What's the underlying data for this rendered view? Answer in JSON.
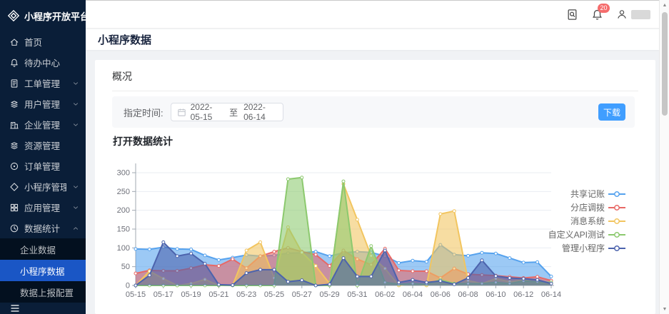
{
  "app": {
    "logo_text": "小程序开放平台"
  },
  "sidebar": {
    "items": [
      {
        "label": "首页",
        "icon": "home"
      },
      {
        "label": "待办中心",
        "icon": "bell"
      },
      {
        "label": "工单管理",
        "icon": "doc",
        "expandable": true
      },
      {
        "label": "用户管理",
        "icon": "layers",
        "expandable": true
      },
      {
        "label": "企业管理",
        "icon": "building",
        "expandable": true
      },
      {
        "label": "资源管理",
        "icon": "layers"
      },
      {
        "label": "订单管理",
        "icon": "order"
      },
      {
        "label": "小程序管理",
        "icon": "diamond",
        "expandable": true
      },
      {
        "label": "应用管理",
        "icon": "grid",
        "expandable": true
      },
      {
        "label": "数据统计",
        "icon": "stats",
        "expandable": true,
        "expanded": true
      }
    ],
    "submenu": {
      "items": [
        "企业数据",
        "小程序数据",
        "数据上报配置"
      ],
      "selected": "小程序数据"
    }
  },
  "header": {
    "notification_badge": "20"
  },
  "page": {
    "title": "小程序数据"
  },
  "overview": {
    "section_title": "概况",
    "date_label": "指定时间:",
    "date_start": "2022-05-15",
    "date_separator": "至",
    "date_end": "2022-06-14",
    "download_label": "下载"
  },
  "colors": {
    "primary_button": "#409eff",
    "sidebar_active": "#1a56c5",
    "badge": "#f56c6c"
  },
  "chart_data": {
    "type": "area",
    "title": "打开数据统计",
    "x": [
      "05-15",
      "05-16",
      "05-17",
      "05-18",
      "05-19",
      "05-20",
      "05-21",
      "05-22",
      "05-23",
      "05-24",
      "05-25",
      "05-26",
      "05-27",
      "05-28",
      "05-29",
      "05-30",
      "05-31",
      "06-01",
      "06-02",
      "06-03",
      "06-04",
      "06-05",
      "06-06",
      "06-07",
      "06-08",
      "06-09",
      "06-10",
      "06-11",
      "06-12",
      "06-13",
      "06-14"
    ],
    "x_label_every": 2,
    "ylim": [
      0,
      300
    ],
    "y_ticks": [
      0,
      50,
      100,
      150,
      200,
      250,
      300
    ],
    "grid": true,
    "legend_position": "right",
    "series": [
      {
        "name": "共享记账",
        "color": "#55a2ee",
        "values": [
          97,
          96,
          102,
          97,
          96,
          80,
          68,
          74,
          81,
          78,
          80,
          86,
          87,
          90,
          78,
          87,
          90,
          88,
          78,
          60,
          66,
          63,
          108,
          82,
          79,
          87,
          85,
          73,
          61,
          62,
          24
        ]
      },
      {
        "name": "分店调拨",
        "color": "#e86865",
        "values": [
          32,
          40,
          39,
          39,
          46,
          55,
          52,
          70,
          46,
          78,
          90,
          100,
          90,
          82,
          52,
          93,
          70,
          55,
          98,
          40,
          38,
          38,
          20,
          45,
          30,
          28,
          26,
          23,
          20,
          23,
          13
        ]
      },
      {
        "name": "消息系统",
        "color": "#f2c55f",
        "values": [
          0,
          38,
          18,
          0,
          5,
          16,
          0,
          0,
          93,
          115,
          20,
          155,
          88,
          52,
          5,
          270,
          175,
          79,
          45,
          0,
          5,
          0,
          190,
          198,
          13,
          5,
          18,
          10,
          15,
          8,
          5
        ]
      },
      {
        "name": "自定义API测试",
        "color": "#8cc96e",
        "values": [
          0,
          0,
          0,
          0,
          0,
          0,
          0,
          0,
          0,
          0,
          0,
          283,
          287,
          0,
          0,
          277,
          0,
          105,
          8,
          3,
          5,
          3,
          15,
          5,
          5,
          5,
          8,
          5,
          12,
          10,
          8
        ]
      },
      {
        "name": "管理小程序",
        "color": "#4c63ad",
        "values": [
          0,
          27,
          115,
          78,
          85,
          58,
          2,
          1,
          33,
          42,
          42,
          10,
          14,
          0,
          3,
          73,
          24,
          24,
          93,
          8,
          15,
          8,
          12,
          3,
          20,
          67,
          25,
          20,
          18,
          15,
          5
        ]
      }
    ]
  }
}
